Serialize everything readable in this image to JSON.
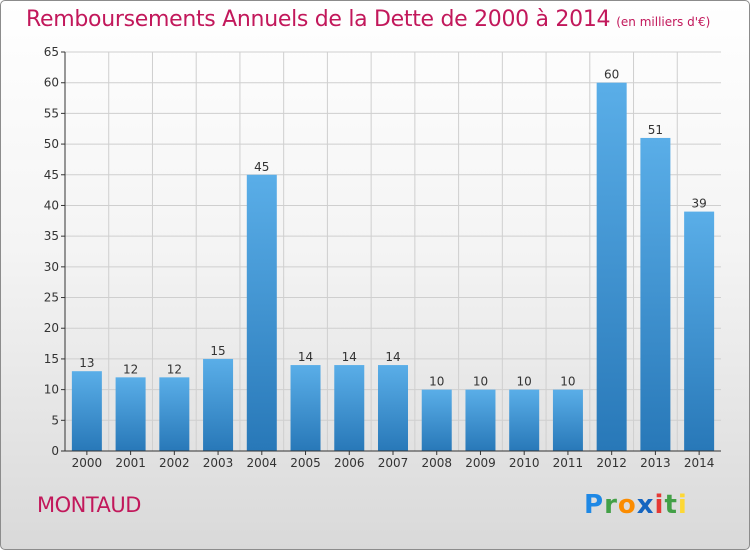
{
  "title": "Remboursements Annuels de la Dette de 2000 à 2014",
  "subtitle": "(en milliers d'€)",
  "commune": "MONTAUD",
  "logo": {
    "letters": [
      "P",
      "r",
      "o",
      "x",
      "i",
      "t",
      "i"
    ],
    "colors": [
      "#1e88e5",
      "#43a047",
      "#fb8c00",
      "#1565c0",
      "#e53935",
      "#43a047",
      "#fdd835"
    ]
  },
  "colors": {
    "title": "#c2185b",
    "bar_light": "#5aaee8",
    "bar_dark": "#2878b8",
    "grid": "#cfcfcf",
    "axis": "#333333"
  },
  "chart_data": {
    "type": "bar",
    "title": "Remboursements Annuels de la Dette de 2000 à 2014",
    "subtitle": "(en milliers d'€)",
    "categories": [
      "2000",
      "2001",
      "2002",
      "2003",
      "2004",
      "2005",
      "2006",
      "2007",
      "2008",
      "2009",
      "2010",
      "2011",
      "2012",
      "2013",
      "2014"
    ],
    "values": [
      13,
      12,
      12,
      15,
      45,
      14,
      14,
      14,
      10,
      10,
      10,
      10,
      60,
      51,
      39
    ],
    "ylim": [
      0,
      65
    ],
    "yticks": [
      0,
      5,
      10,
      15,
      20,
      25,
      30,
      35,
      40,
      45,
      50,
      55,
      60,
      65
    ],
    "grid": true,
    "xlabel": "",
    "ylabel": ""
  }
}
